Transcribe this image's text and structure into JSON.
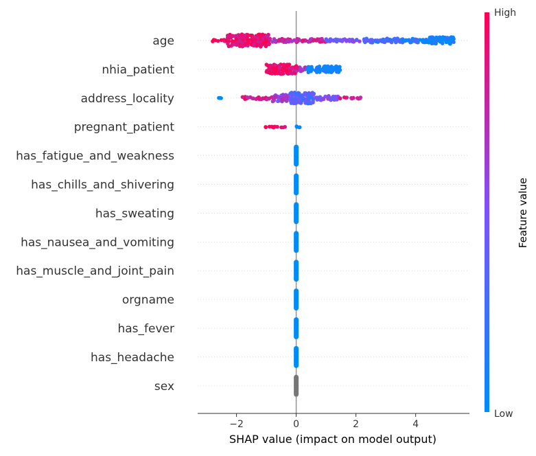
{
  "chart_data": {
    "type": "scatter",
    "subtype": "shap-beeswarm",
    "title": "",
    "xlabel": "SHAP value (impact on model output)",
    "ylabel": "",
    "xlim": [
      -3.3,
      5.8
    ],
    "xticks": [
      -2,
      0,
      2,
      4
    ],
    "xtick_labels": [
      "−2",
      "0",
      "2",
      "4"
    ],
    "features": [
      {
        "name": "age"
      },
      {
        "name": "nhia_patient"
      },
      {
        "name": "address_locality"
      },
      {
        "name": "pregnant_patient"
      },
      {
        "name": "has_fatigue_and_weakness"
      },
      {
        "name": "has_chills_and_shivering"
      },
      {
        "name": "has_sweating"
      },
      {
        "name": "has_nausea_and_vomiting"
      },
      {
        "name": "has_muscle_and_joint_pain"
      },
      {
        "name": "orgname"
      },
      {
        "name": "has_fever"
      },
      {
        "name": "has_headache"
      },
      {
        "name": "sex"
      }
    ],
    "colorbar": {
      "label": "Feature value",
      "high_label": "High",
      "low_label": "Low",
      "low_color": "#008bfb",
      "mid_color": "#7c52ff",
      "high_color": "#ff0052"
    },
    "zero_line": true,
    "row_gridlines": true
  }
}
